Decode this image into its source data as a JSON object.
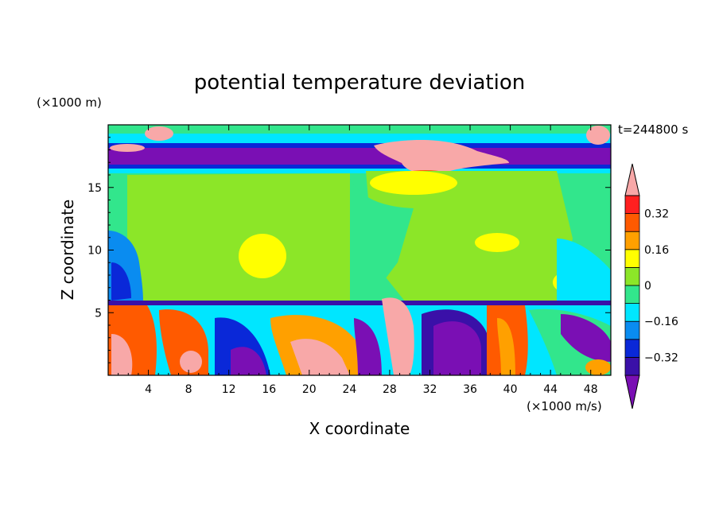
{
  "chart_data": {
    "type": "heatmap",
    "title": "potential temperature deviation",
    "xlabel": "X coordinate",
    "ylabel": "Z coordinate",
    "x_units": "(×1000 m/s)",
    "y_units": "(×1000 m)",
    "time_label": "t=244800 s",
    "xlim": [
      0,
      50
    ],
    "ylim": [
      0,
      20
    ],
    "x_ticks": [
      4,
      8,
      12,
      16,
      20,
      24,
      28,
      32,
      36,
      40,
      44,
      48
    ],
    "y_ticks": [
      5,
      10,
      15
    ],
    "colorbar": {
      "levels": [
        -0.4,
        -0.32,
        -0.24,
        -0.16,
        -0.08,
        0,
        0.08,
        0.16,
        0.24,
        0.32,
        0.4
      ],
      "tick_labels": [
        "0.32",
        "0.16",
        "0",
        "−0.16",
        "−0.32"
      ],
      "tick_values": [
        0.32,
        0.16,
        0,
        -0.16,
        -0.32
      ],
      "colors": [
        "#7a0fb4",
        "#3a10a8",
        "#0a28d8",
        "#0a8cf0",
        "#00e6ff",
        "#32e68c",
        "#8ce628",
        "#ffff00",
        "#ffa000",
        "#ff5a00",
        "#ff2020",
        "#f8a8a8"
      ]
    }
  }
}
